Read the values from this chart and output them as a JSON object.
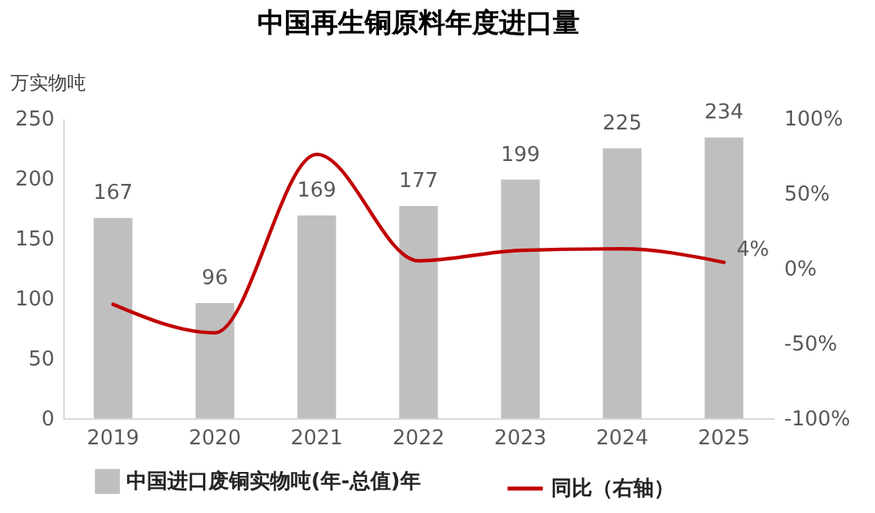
{
  "chart_data": {
    "type": "bar",
    "title": "中国再生铜原料年度进口量",
    "ylabel": "万实物吨",
    "categories": [
      "2019",
      "2020",
      "2021",
      "2022",
      "2023",
      "2024",
      "2025"
    ],
    "series": [
      {
        "name": "中国进口废铜实物吨(年-总值)年",
        "color": "#bfbfbf",
        "values": [
          167,
          96,
          169,
          177,
          199,
          225,
          234
        ],
        "value_labels": [
          "167",
          "96",
          "169",
          "177",
          "199",
          "225",
          "234"
        ]
      },
      {
        "name": "同比（右轴）",
        "type": "line",
        "axis": "y2",
        "color": "#c00000",
        "values": [
          -24,
          -43,
          76,
          5,
          12,
          13,
          4
        ],
        "value_labels": [
          null,
          null,
          null,
          null,
          null,
          null,
          "4%"
        ]
      }
    ],
    "ylim": [
      0,
      250
    ],
    "yticks": [
      0,
      50,
      100,
      150,
      200,
      250
    ],
    "y2lim": [
      -100,
      100
    ],
    "y2ticks": [
      {
        "value": -100,
        "label": "-100%"
      },
      {
        "value": -50,
        "label": "-50%"
      },
      {
        "value": 0,
        "label": "0%"
      },
      {
        "value": 50,
        "label": "50%"
      },
      {
        "value": 100,
        "label": "100%"
      }
    ],
    "grid": false,
    "legend": "bottom",
    "marker": "none",
    "line_style": "solid"
  }
}
